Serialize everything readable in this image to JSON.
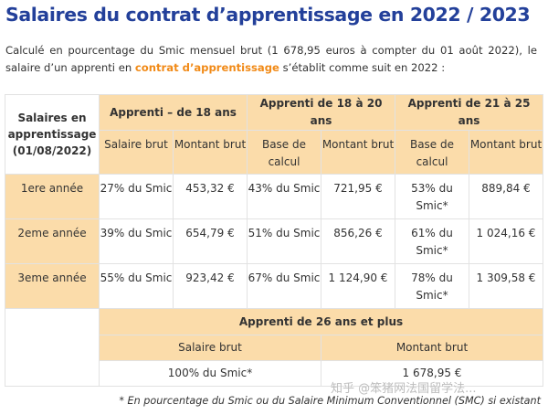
{
  "title": "Salaires du contrat d’apprentissage en 2022 / 2023",
  "intro": {
    "before": "Calculé en pourcentage du Smic mensuel brut (1 678,95 euros à compter du 01 août 2022), le salaire d’un apprenti en ",
    "highlight": "contrat d’apprentissage",
    "after": " s’établit comme suit en 2022 :"
  },
  "colors": {
    "title": "#23409a",
    "highlight": "#f18a17",
    "header_bg": "#fbdcaa",
    "border": "#e2e2e2"
  },
  "table": {
    "corner": "Salaires en apprentissage (01/08/2022)",
    "groups": [
      "Apprenti – de 18 ans",
      "Apprenti de 18 à 20 ans",
      "Apprenti de 21 à 25 ans"
    ],
    "subheaders": [
      "Salaire brut",
      "Montant brut",
      "Base de calcul",
      "Montant brut",
      "Base de calcul",
      "Montant brut"
    ],
    "rows": [
      {
        "year": "1ere année",
        "cells": [
          "27% du Smic",
          "453,32 €",
          "43% du Smic",
          "721,95 €",
          "53% du Smic*",
          "889,84 €"
        ]
      },
      {
        "year": "2eme année",
        "cells": [
          "39% du Smic",
          "654,79 €",
          "51% du Smic",
          "856,26 €",
          "61% du Smic*",
          "1 024,16 €"
        ]
      },
      {
        "year": "3eme année",
        "cells": [
          "55% du Smic",
          "923,42 €",
          "67% du Smic",
          "1 124,90 €",
          "78% du Smic*",
          "1 309,58 €"
        ]
      }
    ],
    "over26": {
      "header": "Apprenti de 26 ans et plus",
      "subheaders": [
        "Salaire brut",
        "Montant brut"
      ],
      "values": [
        "100% du Smic*",
        "1 678,95 €"
      ]
    }
  },
  "watermark": "知乎 @笨猪网法国留学法...",
  "footnote": "* En pourcentage du Smic ou du Salaire Minimum Conventionnel (SMC) si existant"
}
